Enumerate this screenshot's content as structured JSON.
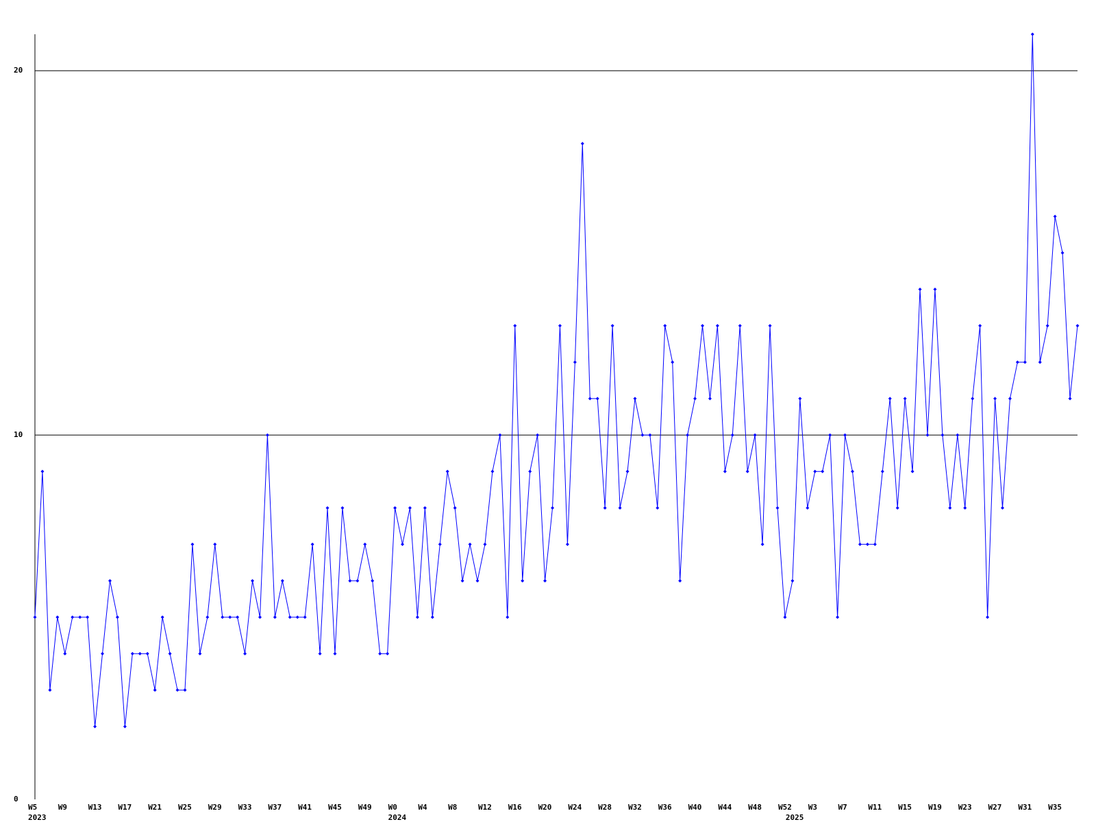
{
  "chart_data": {
    "type": "line",
    "categories": [
      "W5",
      null,
      null,
      null,
      "W9",
      null,
      null,
      null,
      "W13",
      null,
      null,
      null,
      "W17",
      null,
      null,
      null,
      "W21",
      null,
      null,
      null,
      "W25",
      null,
      null,
      null,
      "W29",
      null,
      null,
      null,
      "W33",
      null,
      null,
      null,
      "W37",
      null,
      null,
      null,
      "W41",
      null,
      null,
      null,
      "W45",
      null,
      null,
      null,
      "W49",
      null,
      null,
      null,
      "W0",
      null,
      null,
      null,
      "W4",
      null,
      null,
      null,
      "W8",
      null,
      null,
      null,
      "W12",
      null,
      null,
      null,
      "W16",
      null,
      null,
      null,
      "W20",
      null,
      null,
      null,
      "W24",
      null,
      null,
      null,
      "W28",
      null,
      null,
      null,
      "W32",
      null,
      null,
      null,
      "W36",
      null,
      null,
      null,
      "W40",
      null,
      null,
      null,
      "W44",
      null,
      null,
      null,
      "W48",
      null,
      null,
      null,
      "W52",
      null,
      null,
      null,
      "W3",
      null,
      null,
      null,
      "W7",
      null,
      null,
      null,
      "W11",
      null,
      null,
      null,
      "W15",
      null,
      null,
      null,
      "W19",
      null,
      null,
      null,
      "W23",
      null,
      null,
      null,
      "W27",
      null,
      null,
      null,
      "W31",
      null,
      null,
      null,
      "W35",
      null,
      null,
      null
    ],
    "category_years": [
      "2023",
      null,
      null,
      null,
      null,
      null,
      null,
      null,
      null,
      null,
      null,
      null,
      null,
      null,
      null,
      null,
      null,
      null,
      null,
      null,
      null,
      null,
      null,
      null,
      null,
      null,
      null,
      null,
      null,
      null,
      null,
      null,
      null,
      null,
      null,
      null,
      null,
      null,
      null,
      null,
      null,
      null,
      null,
      null,
      null,
      null,
      null,
      null,
      "2024",
      null,
      null,
      null,
      null,
      null,
      null,
      null,
      null,
      null,
      null,
      null,
      null,
      null,
      null,
      null,
      null,
      null,
      null,
      null,
      null,
      null,
      null,
      null,
      null,
      null,
      null,
      null,
      null,
      null,
      null,
      null,
      null,
      null,
      null,
      null,
      null,
      null,
      null,
      null,
      null,
      null,
      null,
      null,
      null,
      null,
      null,
      null,
      null,
      null,
      null,
      null,
      null,
      "2025",
      null,
      null,
      null,
      null,
      null,
      null,
      null,
      null,
      null,
      null,
      null,
      null,
      null,
      null,
      null,
      null,
      null,
      null,
      null,
      null,
      null,
      null,
      null,
      null,
      null,
      null,
      null,
      null,
      null,
      null,
      null,
      null,
      null,
      null,
      null,
      null,
      null,
      null
    ],
    "values": [
      5,
      9,
      3,
      5,
      4,
      5,
      5,
      5,
      2,
      4,
      6,
      5,
      2,
      4,
      4,
      4,
      3,
      5,
      4,
      3,
      3,
      7,
      4,
      5,
      7,
      5,
      5,
      5,
      4,
      6,
      5,
      10,
      5,
      6,
      5,
      5,
      5,
      7,
      4,
      8,
      4,
      8,
      6,
      6,
      7,
      6,
      4,
      4,
      8,
      7,
      8,
      5,
      8,
      5,
      7,
      9,
      8,
      6,
      7,
      6,
      7,
      9,
      10,
      5,
      13,
      6,
      9,
      10,
      6,
      8,
      13,
      7,
      12,
      18,
      11,
      11,
      8,
      13,
      8,
      9,
      11,
      10,
      10,
      8,
      13,
      12,
      6,
      10,
      11,
      13,
      11,
      13,
      9,
      10,
      13,
      9,
      10,
      7,
      13,
      8,
      5,
      6,
      11,
      8,
      9,
      9,
      10,
      5,
      10,
      9,
      7,
      7,
      7,
      9,
      11,
      8,
      11,
      9,
      14,
      10,
      14,
      10,
      8,
      10,
      8,
      11,
      13,
      5,
      11,
      8,
      11,
      12,
      12,
      21,
      12,
      13,
      16,
      15,
      11,
      13
    ],
    "color": "#0000ff",
    "ylim": [
      0,
      21
    ],
    "yticks": [
      0,
      10,
      20
    ],
    "grid": true
  }
}
